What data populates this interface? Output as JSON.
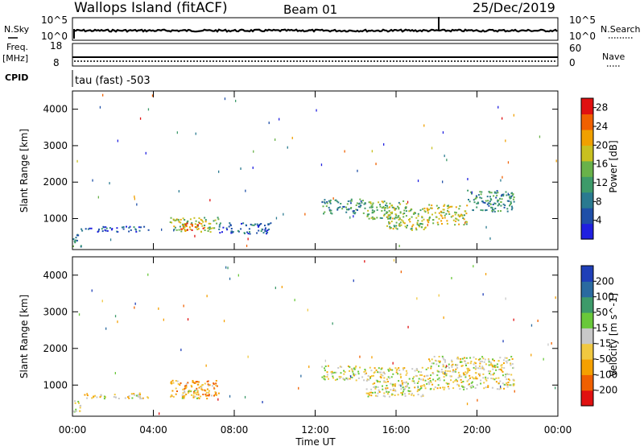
{
  "header": {
    "site": "Wallops Island (fitACF)",
    "beam": "Beam 01",
    "date": "25/Dec/2019"
  },
  "noise_panel": {
    "left_label": "N.Sky",
    "left_ticks": [
      "10^5",
      "10^0"
    ],
    "right_ticks": [
      "10^5",
      "10^0"
    ],
    "right_label": "N.Search"
  },
  "freq_panel": {
    "left_label_1": "Freq.",
    "left_label_2": "[MHz]",
    "left_ticks": [
      "18",
      "8"
    ],
    "right_ticks": [
      "60",
      "0"
    ],
    "right_label": "Nave"
  },
  "cpid_panel": {
    "label": "CPID",
    "text": "tau (fast) -503"
  },
  "colors": {
    "power": [
      "#1f1fe0",
      "#1f4fa8",
      "#2a7a90",
      "#3d9a6a",
      "#69b24a",
      "#c8c020",
      "#f0a000",
      "#f06000",
      "#e01010"
    ],
    "velocity": [
      "#e01010",
      "#f06000",
      "#f5a000",
      "#f0c840",
      "#c8c8c8",
      "#69c83a",
      "#3d9a6a",
      "#2a6aa0",
      "#1f3fb8"
    ]
  },
  "chart_data": [
    {
      "type": "heatmap",
      "panel": "power",
      "ylabel": "Slant Range [km]",
      "yticks": [
        1000,
        2000,
        3000,
        4000
      ],
      "ylim": [
        150,
        4500
      ],
      "xlim": [
        0,
        24
      ],
      "colorbar": {
        "label": "Power [dB]",
        "ticks": [
          "28",
          "24",
          "20",
          "16",
          "12",
          "8",
          "4"
        ],
        "range": [
          0,
          30
        ]
      },
      "regions": [
        {
          "t0": 0.0,
          "t1": 0.4,
          "r0": 200,
          "r1": 600,
          "level": 0.35
        },
        {
          "t0": 0.4,
          "t1": 3.8,
          "r0": 650,
          "r1": 800,
          "level": 0.2
        },
        {
          "t0": 4.8,
          "t1": 7.2,
          "r0": 650,
          "r1": 1050,
          "level": 0.55
        },
        {
          "t0": 5.3,
          "t1": 6.5,
          "r0": 700,
          "r1": 900,
          "level": 0.8
        },
        {
          "t0": 7.2,
          "t1": 9.8,
          "r0": 600,
          "r1": 900,
          "level": 0.2
        },
        {
          "t0": 12.3,
          "t1": 14.5,
          "r0": 1150,
          "r1": 1550,
          "level": 0.35
        },
        {
          "t0": 14.5,
          "t1": 16.5,
          "r0": 1000,
          "r1": 1500,
          "level": 0.5
        },
        {
          "t0": 15.5,
          "t1": 17.5,
          "r0": 700,
          "r1": 1300,
          "level": 0.55
        },
        {
          "t0": 17.5,
          "t1": 19.5,
          "r0": 850,
          "r1": 1400,
          "level": 0.6
        },
        {
          "t0": 19.5,
          "t1": 21.8,
          "r0": 1200,
          "r1": 1800,
          "level": 0.35
        }
      ]
    },
    {
      "type": "heatmap",
      "panel": "velocity",
      "ylabel": "Slant Range [km]",
      "yticks": [
        1000,
        2000,
        3000,
        4000
      ],
      "ylim": [
        150,
        4500
      ],
      "xlim": [
        0,
        24
      ],
      "xticks": [
        "00:00",
        "04:00",
        "08:00",
        "12:00",
        "16:00",
        "20:00",
        "00:00"
      ],
      "xlabel": "Time UT",
      "colorbar": {
        "label": "Velocity [m s^-1]",
        "ticks": [
          "200",
          "100",
          "50",
          "15",
          "-15",
          "-50",
          "-100",
          "-200"
        ],
        "range": [
          -250,
          250
        ]
      },
      "regions": [
        {
          "t0": 0.0,
          "t1": 0.4,
          "r0": 200,
          "r1": 600,
          "level": 0.45
        },
        {
          "t0": 0.4,
          "t1": 3.8,
          "r0": 650,
          "r1": 800,
          "level": 0.45
        },
        {
          "t0": 4.8,
          "t1": 7.2,
          "r0": 650,
          "r1": 1150,
          "level": 0.3
        },
        {
          "t0": 5.3,
          "t1": 6.3,
          "r0": 650,
          "r1": 900,
          "level": 0.45
        },
        {
          "t0": 12.3,
          "t1": 14.5,
          "r0": 1150,
          "r1": 1550,
          "level": 0.48
        },
        {
          "t0": 14.5,
          "t1": 17.5,
          "r0": 700,
          "r1": 1500,
          "level": 0.47
        },
        {
          "t0": 17.5,
          "t1": 21.8,
          "r0": 900,
          "r1": 1800,
          "level": 0.46
        }
      ]
    }
  ]
}
